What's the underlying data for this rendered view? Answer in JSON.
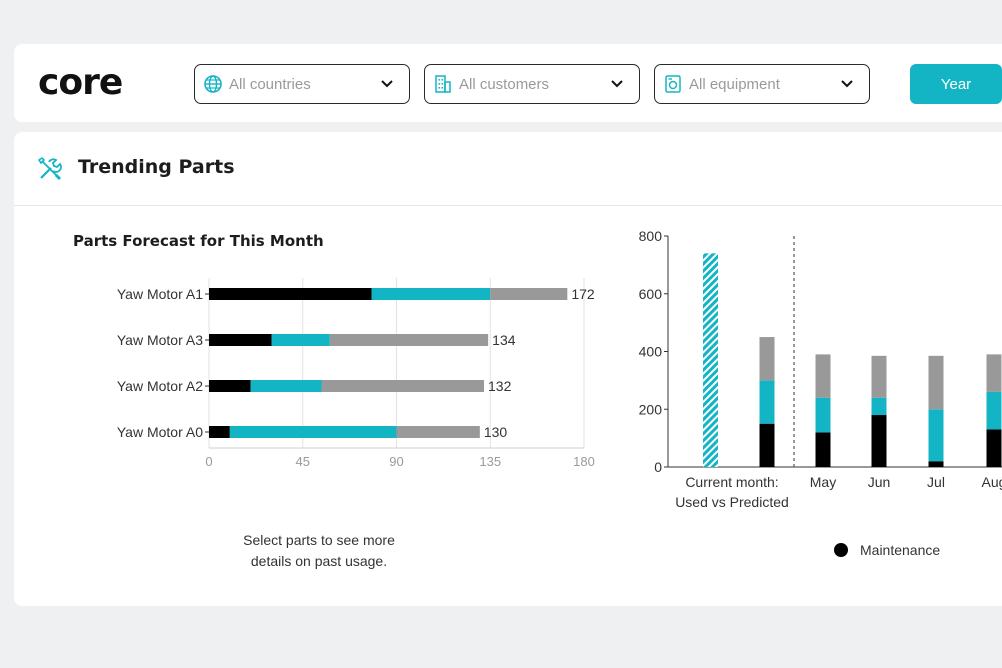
{
  "brand": {
    "logo_text": "core"
  },
  "filters": {
    "countries": {
      "placeholder": "All countries",
      "icon": "globe-icon"
    },
    "customers": {
      "placeholder": "All customers",
      "icon": "building-icon"
    },
    "equipment": {
      "placeholder": "All equipment",
      "icon": "equipment-icon"
    },
    "period_button": "Year"
  },
  "card": {
    "title": "Trending Parts",
    "icon": "tools-icon"
  },
  "colors": {
    "accent": "#13b5c4",
    "maintenance": "#000000",
    "grey": "#999999"
  },
  "hint_line1": "Select parts to see more",
  "hint_line2": "details on past usage.",
  "legend": {
    "maintenance": "Maintenance"
  },
  "chart_data": [
    {
      "type": "bar",
      "orientation": "horizontal",
      "stacked": true,
      "title": "Parts Forecast for This Month",
      "categories": [
        "Yaw Motor A1",
        "Yaw Motor A3",
        "Yaw Motor A2",
        "Yaw Motor A0"
      ],
      "series": [
        {
          "color": "#000000",
          "values": [
            78,
            30,
            20,
            10
          ]
        },
        {
          "color": "#13b5c4",
          "values": [
            57,
            28,
            34,
            80
          ]
        },
        {
          "color": "#999999",
          "values": [
            37,
            76,
            78,
            40
          ]
        }
      ],
      "totals": [
        172,
        134,
        132,
        130
      ],
      "xticks": [
        0,
        45,
        90,
        135,
        180
      ],
      "xlim": [
        0,
        180
      ],
      "grid": true
    },
    {
      "type": "bar",
      "stacked": true,
      "categories": [
        "Current month:\nUsed vs Predicted",
        "May",
        "Jun",
        "Jul",
        "Aug"
      ],
      "current_month_predicted": 740,
      "series": [
        {
          "name": "Maintenance",
          "color": "#000000",
          "values": [
            150,
            120,
            180,
            20,
            130
          ]
        },
        {
          "color": "#13b5c4",
          "values": [
            150,
            120,
            60,
            180,
            130
          ]
        },
        {
          "color": "#999999",
          "values": [
            150,
            150,
            145,
            185,
            130
          ]
        }
      ],
      "yticks": [
        0,
        200,
        400,
        600,
        800
      ],
      "ylim": [
        0,
        800
      ],
      "legend": "bottom-right"
    }
  ]
}
